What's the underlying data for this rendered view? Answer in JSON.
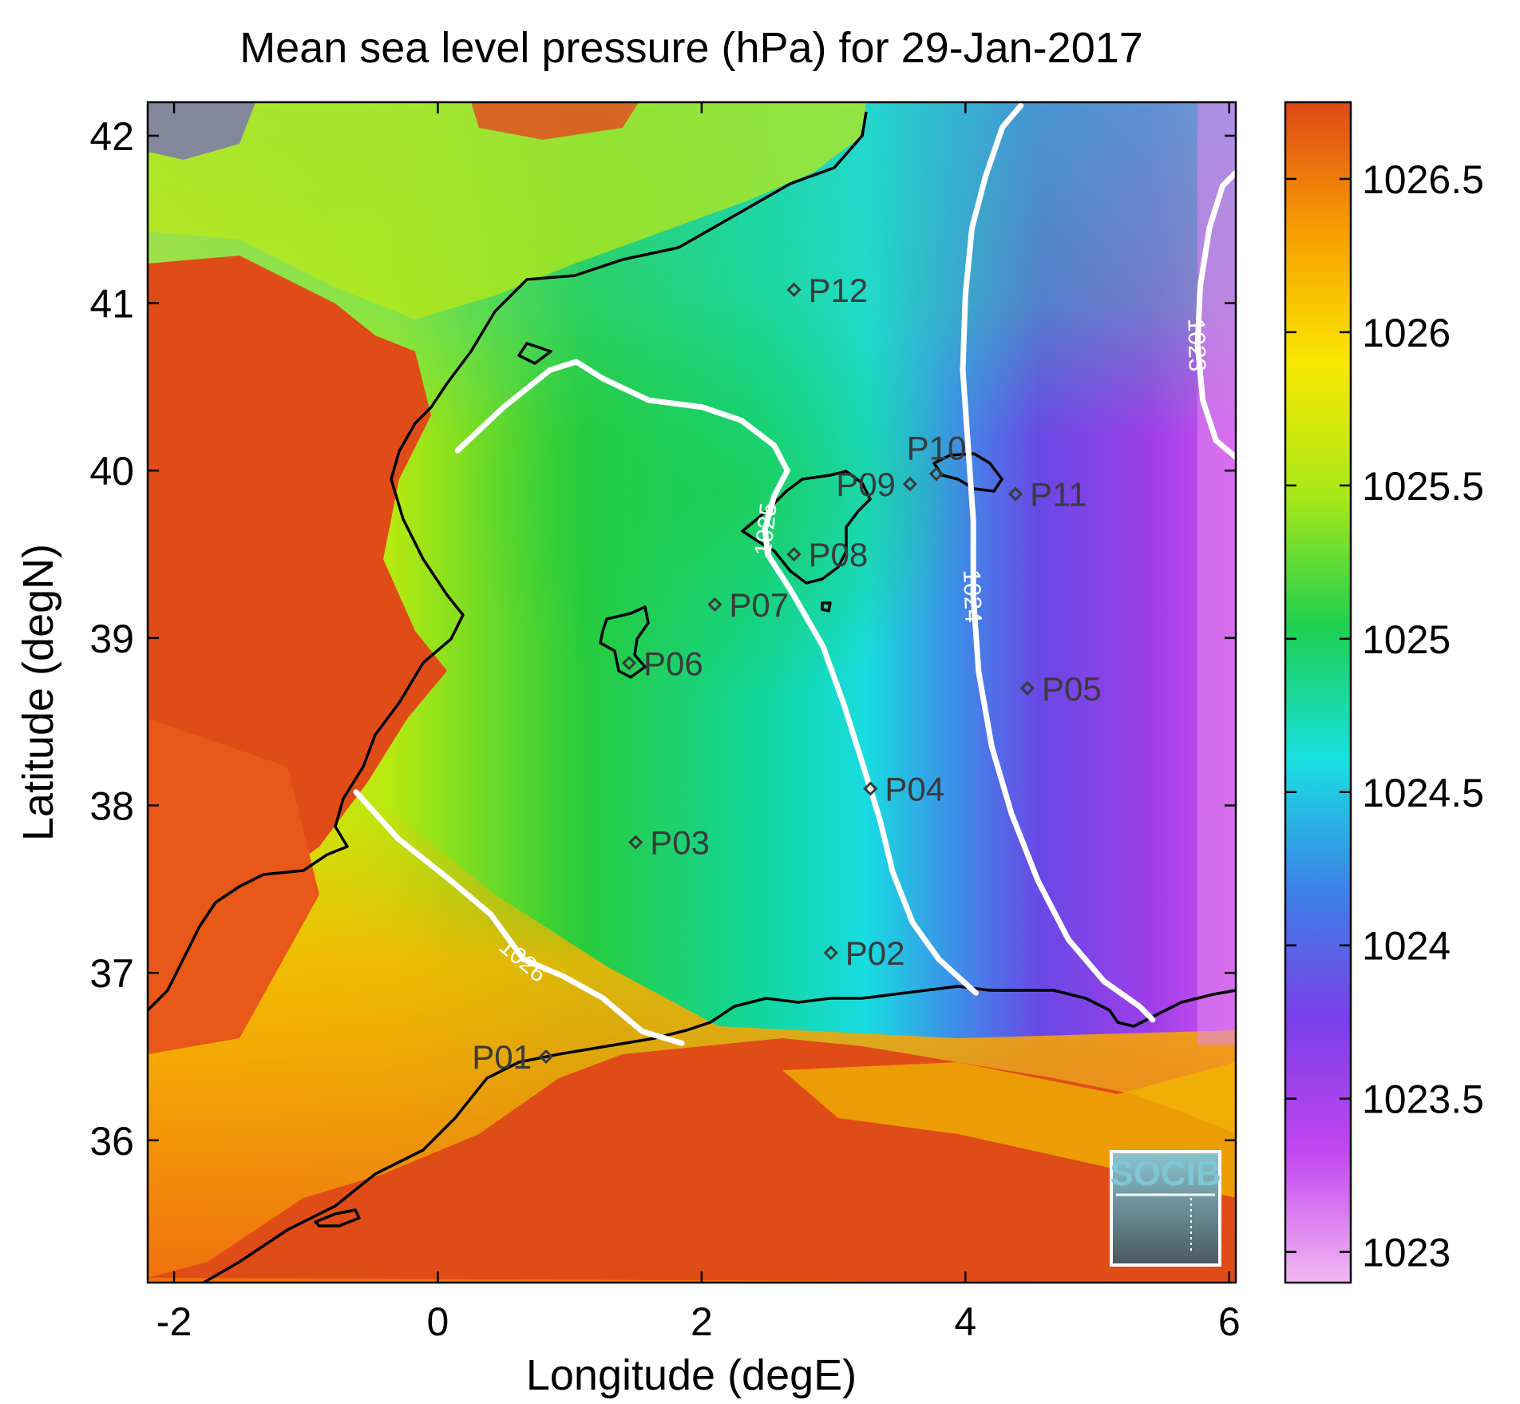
{
  "title": "Mean sea level pressure (hPa) for 29-Jan-2017",
  "xlabel": "Longitude (degE)",
  "ylabel": "Latitude (degN)",
  "xlim": [
    -2.2,
    6.05
  ],
  "ylim": [
    35.15,
    42.2
  ],
  "xticks": [
    {
      "v": -2,
      "label": "-2"
    },
    {
      "v": 0,
      "label": "0"
    },
    {
      "v": 2,
      "label": "2"
    },
    {
      "v": 4,
      "label": "4"
    },
    {
      "v": 6,
      "label": "6"
    }
  ],
  "yticks": [
    {
      "v": 36,
      "label": "36"
    },
    {
      "v": 37,
      "label": "37"
    },
    {
      "v": 38,
      "label": "38"
    },
    {
      "v": 39,
      "label": "39"
    },
    {
      "v": 40,
      "label": "40"
    },
    {
      "v": 41,
      "label": "41"
    },
    {
      "v": 42,
      "label": "42"
    }
  ],
  "colorbar": {
    "range": [
      1022.9,
      1026.75
    ],
    "ticks": [
      {
        "v": 1023,
        "label": "1023"
      },
      {
        "v": 1023.5,
        "label": "1023.5"
      },
      {
        "v": 1024,
        "label": "1024"
      },
      {
        "v": 1024.5,
        "label": "1024.5"
      },
      {
        "v": 1025,
        "label": "1025"
      },
      {
        "v": 1025.5,
        "label": "1025.5"
      },
      {
        "v": 1026,
        "label": "1026"
      },
      {
        "v": 1026.5,
        "label": "1026.5"
      }
    ],
    "colors": [
      "#f2b8f2",
      "#c246f0",
      "#7b3ee8",
      "#3c82e8",
      "#18e0e0",
      "#1ed050",
      "#a8e818",
      "#f8e800",
      "#f8a000",
      "#e04818"
    ]
  },
  "stations": [
    {
      "name": "P01",
      "lon": 0.82,
      "lat": 36.5,
      "label_side": "left"
    },
    {
      "name": "P02",
      "lon": 2.98,
      "lat": 37.12,
      "label_side": "right"
    },
    {
      "name": "P03",
      "lon": 1.5,
      "lat": 37.78,
      "label_side": "right"
    },
    {
      "name": "P04",
      "lon": 3.28,
      "lat": 38.1,
      "label_side": "right"
    },
    {
      "name": "P05",
      "lon": 4.47,
      "lat": 38.7,
      "label_side": "right"
    },
    {
      "name": "P06",
      "lon": 1.45,
      "lat": 38.85,
      "label_side": "right"
    },
    {
      "name": "P07",
      "lon": 2.1,
      "lat": 39.2,
      "label_side": "right"
    },
    {
      "name": "P08",
      "lon": 2.7,
      "lat": 39.5,
      "label_side": "right"
    },
    {
      "name": "P09",
      "lon": 3.58,
      "lat": 39.92,
      "label_side": "left"
    },
    {
      "name": "P10",
      "lon": 3.78,
      "lat": 39.98,
      "label_side": "above"
    },
    {
      "name": "P11",
      "lon": 4.38,
      "lat": 39.86,
      "label_side": "right"
    },
    {
      "name": "P12",
      "lon": 2.7,
      "lat": 41.08,
      "label_side": "right"
    }
  ],
  "contours": [
    {
      "value": 1026,
      "label": "1026",
      "points": [
        [
          -0.62,
          38.08
        ],
        [
          -0.3,
          37.8
        ],
        [
          0.1,
          37.55
        ],
        [
          0.4,
          37.35
        ],
        [
          0.65,
          37.08
        ],
        [
          0.95,
          36.98
        ],
        [
          1.25,
          36.85
        ],
        [
          1.55,
          36.65
        ],
        [
          1.85,
          36.58
        ]
      ]
    },
    {
      "value": 1025,
      "label": "1025",
      "points": [
        [
          0.15,
          40.12
        ],
        [
          0.5,
          40.38
        ],
        [
          0.85,
          40.6
        ],
        [
          1.05,
          40.65
        ],
        [
          1.25,
          40.55
        ],
        [
          1.6,
          40.42
        ],
        [
          2.0,
          40.38
        ],
        [
          2.3,
          40.3
        ],
        [
          2.55,
          40.15
        ],
        [
          2.65,
          40.0
        ],
        [
          2.55,
          39.85
        ],
        [
          2.48,
          39.65
        ],
        [
          2.5,
          39.5
        ],
        [
          2.68,
          39.28
        ],
        [
          2.92,
          38.95
        ],
        [
          3.08,
          38.6
        ],
        [
          3.22,
          38.25
        ],
        [
          3.35,
          37.92
        ],
        [
          3.45,
          37.6
        ],
        [
          3.6,
          37.3
        ],
        [
          3.8,
          37.08
        ],
        [
          4.08,
          36.88
        ]
      ]
    },
    {
      "value": 1024,
      "label": "1024",
      "points": [
        [
          4.42,
          42.18
        ],
        [
          4.28,
          42.05
        ],
        [
          4.15,
          41.75
        ],
        [
          4.05,
          41.45
        ],
        [
          4.0,
          41.05
        ],
        [
          3.98,
          40.6
        ],
        [
          4.02,
          40.15
        ],
        [
          4.06,
          39.7
        ],
        [
          4.06,
          39.25
        ],
        [
          4.1,
          38.8
        ],
        [
          4.2,
          38.35
        ],
        [
          4.35,
          37.95
        ],
        [
          4.55,
          37.55
        ],
        [
          4.78,
          37.2
        ],
        [
          5.05,
          36.95
        ],
        [
          5.32,
          36.8
        ],
        [
          5.42,
          36.72
        ]
      ]
    },
    {
      "value": 1023,
      "label": "1023",
      "points": [
        [
          6.05,
          41.78
        ],
        [
          5.95,
          41.7
        ],
        [
          5.85,
          41.45
        ],
        [
          5.78,
          41.1
        ],
        [
          5.76,
          40.75
        ],
        [
          5.8,
          40.42
        ],
        [
          5.9,
          40.18
        ],
        [
          6.05,
          40.08
        ]
      ]
    }
  ],
  "logo": {
    "text": "SOCIB"
  }
}
